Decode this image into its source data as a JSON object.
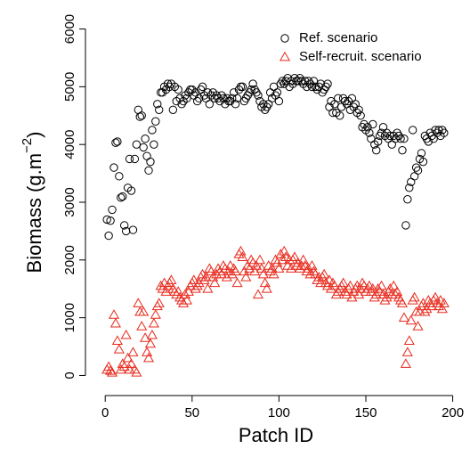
{
  "chart_data": {
    "type": "scatter",
    "x_label": "Patch ID",
    "y_label": {
      "text": "Biomass (g.m",
      "superscript": "−2",
      "suffix": ")"
    },
    "xlim": [
      -7.8,
      203.8
    ],
    "ylim": [
      -240,
      6240
    ],
    "xticks": [
      0,
      50,
      100,
      150,
      200
    ],
    "yticks": [
      0,
      1000,
      2000,
      3000,
      4000,
      5000,
      6000
    ],
    "legend": "topright",
    "x": [
      1,
      2,
      3,
      4,
      5,
      6,
      7,
      8,
      9,
      10,
      11,
      12,
      13,
      14,
      15,
      16,
      17,
      18,
      19,
      20,
      21,
      22,
      23,
      24,
      25,
      26,
      27,
      28,
      29,
      30,
      31,
      32,
      33,
      34,
      35,
      36,
      37,
      38,
      39,
      40,
      41,
      42,
      43,
      44,
      45,
      46,
      47,
      48,
      49,
      50,
      51,
      52,
      53,
      54,
      55,
      56,
      57,
      58,
      59,
      60,
      61,
      62,
      63,
      64,
      65,
      66,
      67,
      68,
      69,
      70,
      71,
      72,
      73,
      74,
      75,
      76,
      77,
      78,
      79,
      80,
      81,
      82,
      83,
      84,
      85,
      86,
      87,
      88,
      89,
      90,
      91,
      92,
      93,
      94,
      95,
      96,
      97,
      98,
      99,
      100,
      101,
      102,
      103,
      104,
      105,
      106,
      107,
      108,
      109,
      110,
      111,
      112,
      113,
      114,
      115,
      116,
      117,
      118,
      119,
      120,
      121,
      122,
      123,
      124,
      125,
      126,
      127,
      128,
      129,
      130,
      131,
      132,
      133,
      134,
      135,
      136,
      137,
      138,
      139,
      140,
      141,
      142,
      143,
      144,
      145,
      146,
      147,
      148,
      149,
      150,
      151,
      152,
      153,
      154,
      155,
      156,
      157,
      158,
      159,
      160,
      161,
      162,
      163,
      164,
      165,
      166,
      167,
      168,
      169,
      170,
      171,
      172,
      173,
      174,
      175,
      176,
      177,
      178,
      179,
      180,
      181,
      182,
      183,
      184,
      185,
      186,
      187,
      188,
      189,
      190,
      191,
      192,
      193,
      194,
      195
    ],
    "series": [
      {
        "name": "Ref. scenario",
        "color": "#000000",
        "marker": "circle",
        "values": [
          2700,
          2420,
          2680,
          2870,
          3600,
          4030,
          4050,
          3450,
          3080,
          3100,
          2600,
          2500,
          3250,
          3750,
          3200,
          2520,
          3750,
          4000,
          4600,
          4480,
          4500,
          3950,
          4100,
          3800,
          3550,
          3700,
          4250,
          4000,
          4400,
          4700,
          4600,
          4900,
          4900,
          5000,
          4950,
          5050,
          5000,
          5050,
          4600,
          5000,
          4750,
          4950,
          4800,
          4700,
          4750,
          4850,
          4800,
          4900,
          4950,
          4950,
          4850,
          4900,
          4750,
          4800,
          4950,
          5000,
          4850,
          4800,
          4900,
          4700,
          4850,
          4900,
          4800,
          4850,
          4800,
          4750,
          4850,
          4800,
          4700,
          4800,
          4750,
          4750,
          4800,
          4900,
          4700,
          4800,
          4950,
          5000,
          5000,
          4750,
          4800,
          4850,
          4900,
          4950,
          5050,
          4950,
          4900,
          4850,
          4750,
          4650,
          4700,
          4600,
          4650,
          4700,
          4900,
          4800,
          5000,
          4850,
          4900,
          4750,
          5050,
          5100,
          5050,
          5100,
          5150,
          5000,
          5100,
          5050,
          5150,
          5100,
          5100,
          5150,
          5100,
          5050,
          5100,
          5000,
          5100,
          5050,
          5000,
          5100,
          5000,
          4950,
          5000,
          5050,
          4900,
          4950,
          5000,
          5050,
          4650,
          4750,
          4550,
          4700,
          4550,
          4800,
          4500,
          4650,
          4800,
          4750,
          4700,
          4750,
          4600,
          4800,
          4650,
          4700,
          4550,
          4600,
          4500,
          4300,
          4350,
          4250,
          4300,
          4200,
          4100,
          4350,
          4000,
          3900,
          4050,
          4150,
          4200,
          4300,
          4150,
          4200,
          4100,
          4150,
          4000,
          4150,
          4100,
          4200,
          4150,
          4100,
          3900,
          4100,
          2600,
          3050,
          3250,
          3350,
          4250,
          3450,
          3600,
          3550,
          3750,
          3850,
          3700,
          4150,
          4100,
          4050,
          4200,
          4150,
          4100,
          4250,
          4200,
          4250,
          4150,
          4250,
          4200
        ]
      },
      {
        "name": "Self-recruit. scenario",
        "color": "#e8291c",
        "marker": "triangle",
        "values": [
          100,
          150,
          80,
          50,
          1050,
          900,
          600,
          450,
          100,
          200,
          150,
          700,
          300,
          100,
          200,
          400,
          100,
          50,
          1250,
          1100,
          850,
          1100,
          650,
          400,
          300,
          550,
          700,
          900,
          1050,
          1200,
          1250,
          1550,
          1500,
          1600,
          1450,
          1550,
          1600,
          1650,
          1500,
          1450,
          1400,
          1450,
          1350,
          1300,
          1250,
          1400,
          1300,
          1450,
          1550,
          1600,
          1650,
          1500,
          1550,
          1600,
          1700,
          1750,
          1650,
          1700,
          1500,
          1850,
          1800,
          1700,
          1600,
          1750,
          1850,
          1800,
          1750,
          1900,
          1850,
          1700,
          1800,
          1900,
          1750,
          1850,
          1800,
          1600,
          2100,
          2150,
          2050,
          1800,
          1700,
          1900,
          1850,
          2000,
          1950,
          1800,
          1900,
          1400,
          2000,
          1850,
          1750,
          1600,
          1500,
          1900,
          1800,
          1850,
          1750,
          2000,
          1950,
          1850,
          2100,
          2000,
          2150,
          2050,
          1900,
          2000,
          1850,
          2000,
          2050,
          1900,
          1950,
          1850,
          1900,
          2000,
          1900,
          1800,
          1850,
          1750,
          1900,
          1800,
          1750,
          1650,
          1700,
          1600,
          1700,
          1750,
          1600,
          1550,
          1650,
          1500,
          1600,
          1550,
          1400,
          1450,
          1500,
          1550,
          1600,
          1450,
          1400,
          1500,
          1550,
          1350,
          1450,
          1500,
          1550,
          1400,
          1500,
          1600,
          1550,
          1450,
          1500,
          1550,
          1450,
          1500,
          1350,
          1400,
          1500,
          1450,
          1550,
          1400,
          1300,
          1350,
          1450,
          1500,
          1400,
          1550,
          1400,
          1450,
          1350,
          1300,
          1250,
          1000,
          200,
          400,
          600,
          950,
          1300,
          1350,
          1100,
          850,
          1100,
          1200,
          1250,
          1100,
          1150,
          1300,
          1250,
          1200,
          1300,
          1350,
          1250,
          1200,
          1300,
          1150,
          1250
        ]
      }
    ]
  }
}
